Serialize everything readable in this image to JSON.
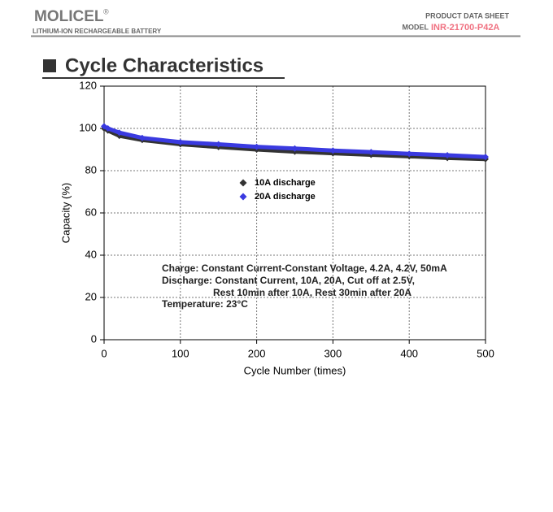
{
  "header": {
    "logo": "MOLICEL",
    "logo_mark": "®",
    "tagline": "LITHIUM-ION RECHARGEABLE BATTERY",
    "doc_type": "PRODUCT DATA SHEET",
    "model_label": "MODEL",
    "model": "INR-21700-P42A"
  },
  "section_title": "Cycle Characteristics",
  "chart_data": {
    "type": "line",
    "x_label": "Cycle Number (times)",
    "y_label": "Capacity (%)",
    "x": [
      0,
      5,
      20,
      50,
      100,
      150,
      200,
      250,
      300,
      350,
      400,
      450,
      500
    ],
    "series": [
      {
        "name": "10A discharge",
        "color": "#333333",
        "marker": "diamond",
        "values": [
          100,
          99,
          96.5,
          94.5,
          92.5,
          91.2,
          90,
          89,
          88.2,
          87.5,
          86.8,
          86,
          85.5
        ]
      },
      {
        "name": "20A discharge",
        "color": "#3a3ae0",
        "marker": "diamond",
        "values": [
          101,
          100,
          98,
          95.5,
          93.5,
          92.5,
          91.3,
          90.5,
          89.5,
          88.8,
          88,
          87.3,
          86.5
        ]
      }
    ],
    "xlim": [
      0,
      500
    ],
    "xticks": [
      0,
      100,
      200,
      300,
      400,
      500
    ],
    "ylim": [
      0,
      120
    ],
    "yticks": [
      0,
      20,
      40,
      60,
      80,
      100,
      120
    ],
    "grid": true,
    "annotations": [
      "Charge: Constant Current-Constant Voltage, 4.2A, 4.2V, 50mA",
      "Discharge: Constant Current, 10A, 20A, Cut off at 2.5V,",
      "Rest 10min after 10A, Rest 30min after 20A",
      "Temperature: 23°C"
    ]
  }
}
